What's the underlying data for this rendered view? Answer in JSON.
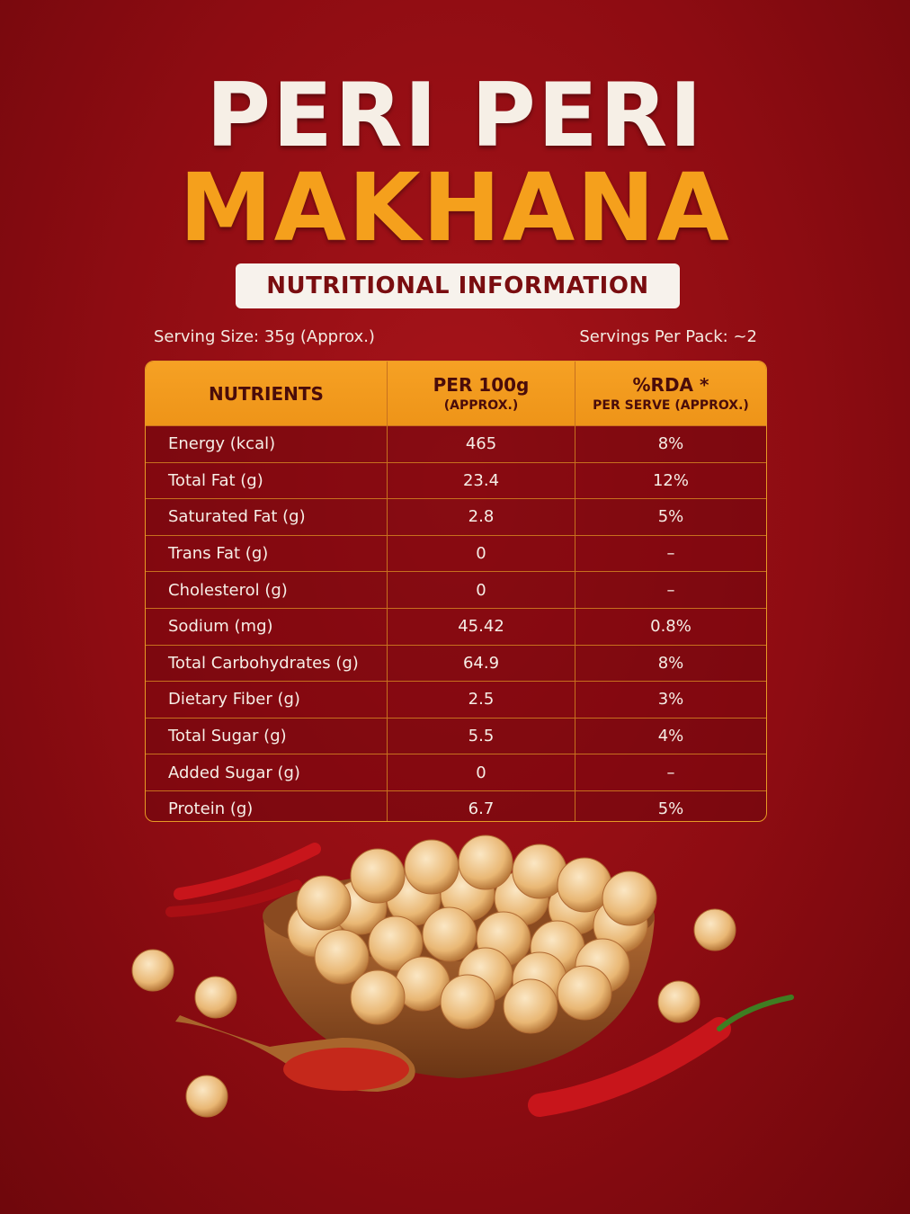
{
  "header": {
    "title_line1": "PERI PERI",
    "title_line2": "MAKHANA",
    "badge": "NUTRITIONAL INFORMATION"
  },
  "serving": {
    "size": "Serving Size: 35g (Approx.)",
    "per_pack": "Servings Per Pack: ~2"
  },
  "table": {
    "columns": [
      {
        "title": "NUTRIENTS"
      },
      {
        "title": "PER 100g",
        "subtitle": "(APPROX.)"
      },
      {
        "title": "%RDA *",
        "subtitle": "PER SERVE (APPROX.)"
      }
    ],
    "rows": [
      [
        "Energy (kcal)",
        "465",
        "8%"
      ],
      [
        "Total Fat (g)",
        "23.4",
        "12%"
      ],
      [
        "Saturated Fat (g)",
        "2.8",
        "5%"
      ],
      [
        "Trans Fat (g)",
        "0",
        "–"
      ],
      [
        "Cholesterol (g)",
        "0",
        "–"
      ],
      [
        "Sodium (mg)",
        "45.42",
        "0.8%"
      ],
      [
        "Total Carbohydrates (g)",
        "64.9",
        "8%"
      ],
      [
        "Dietary Fiber (g)",
        "2.5",
        "3%"
      ],
      [
        "Total Sugar (g)",
        "5.5",
        "4%"
      ],
      [
        "Added Sugar (g)",
        "0",
        "–"
      ],
      [
        "Protein (g)",
        "6.7",
        "5%"
      ]
    ]
  }
}
